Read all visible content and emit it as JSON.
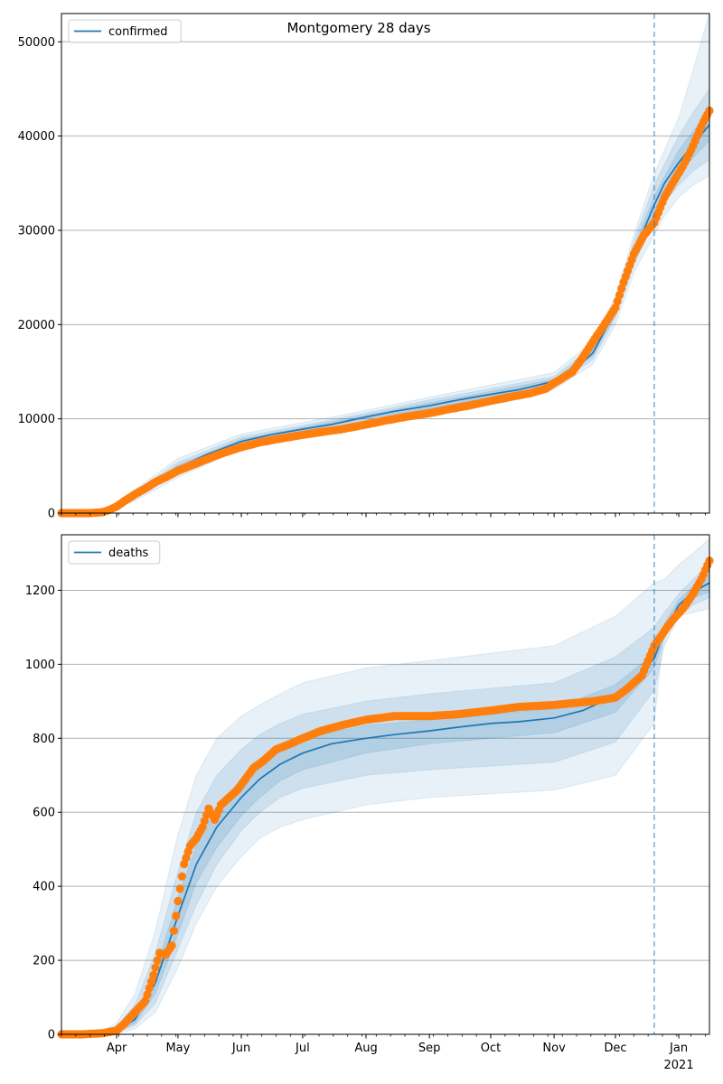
{
  "figure": {
    "title": "Montgomery 28 days"
  },
  "colors": {
    "model": "#1f77b4",
    "observed": "#ff7f0e",
    "band": "#1f77b4",
    "grid": "#b0b0b0",
    "divider": "#1f77b4"
  },
  "x_axis": {
    "month_labels": [
      "Apr",
      "May",
      "Jun",
      "Jul",
      "Aug",
      "Sep",
      "Oct",
      "Nov",
      "Dec",
      "Jan"
    ],
    "year_label": "2021",
    "major_ticks": [
      "2020-04-01",
      "2020-05-01",
      "2020-06-01",
      "2020-07-01",
      "2020-08-01",
      "2020-09-01",
      "2020-10-01",
      "2020-11-01",
      "2020-12-01",
      "2021-01-01"
    ],
    "start": "2020-03-05",
    "end": "2021-01-16",
    "forecast_start": "2020-12-20"
  },
  "chart_data": [
    {
      "type": "line",
      "title": "Montgomery 28 days",
      "legend": "confirmed",
      "legend_position": "top-left",
      "grid": "horizontal",
      "ylim": [
        0,
        53000
      ],
      "yticks": [
        0,
        10000,
        20000,
        30000,
        40000,
        50000
      ],
      "ytick_labels": [
        "0",
        "10000",
        "20000",
        "30000",
        "40000",
        "50000"
      ],
      "series": [
        {
          "name": "confirmed",
          "role": "model",
          "x": [
            "2020-03-05",
            "2020-03-20",
            "2020-03-27",
            "2020-04-01",
            "2020-04-10",
            "2020-04-20",
            "2020-05-01",
            "2020-05-15",
            "2020-06-01",
            "2020-06-15",
            "2020-07-01",
            "2020-07-15",
            "2020-08-01",
            "2020-08-15",
            "2020-09-01",
            "2020-09-15",
            "2020-10-01",
            "2020-10-15",
            "2020-11-01",
            "2020-11-10",
            "2020-11-20",
            "2020-12-01",
            "2020-12-10",
            "2020-12-20",
            "2020-12-25",
            "2021-01-01",
            "2021-01-08",
            "2021-01-16"
          ],
          "y": [
            0,
            0,
            300,
            800,
            1900,
            3200,
            4800,
            6200,
            7600,
            8300,
            8900,
            9400,
            10200,
            10800,
            11400,
            12000,
            12600,
            13100,
            14000,
            15000,
            17000,
            21500,
            27500,
            32700,
            35000,
            37200,
            39100,
            41200
          ]
        },
        {
          "name": "confirmed observed",
          "role": "observed",
          "x": [
            "2020-03-05",
            "2020-03-12",
            "2020-03-19",
            "2020-03-25",
            "2020-03-28",
            "2020-04-01",
            "2020-04-05",
            "2020-04-10",
            "2020-04-15",
            "2020-04-20",
            "2020-04-25",
            "2020-05-01",
            "2020-05-08",
            "2020-05-15",
            "2020-05-22",
            "2020-06-01",
            "2020-06-10",
            "2020-06-20",
            "2020-07-01",
            "2020-07-10",
            "2020-07-20",
            "2020-08-01",
            "2020-08-10",
            "2020-08-20",
            "2020-09-01",
            "2020-09-10",
            "2020-09-20",
            "2020-10-01",
            "2020-10-10",
            "2020-10-20",
            "2020-10-28",
            "2020-11-01",
            "2020-11-05",
            "2020-11-10",
            "2020-11-15",
            "2020-11-20",
            "2020-11-25",
            "2020-12-01",
            "2020-12-05",
            "2020-12-10",
            "2020-12-15",
            "2020-12-20",
            "2020-12-25",
            "2020-12-29",
            "2021-01-03",
            "2021-01-07",
            "2021-01-10",
            "2021-01-13",
            "2021-01-16"
          ],
          "y": [
            0,
            0,
            0,
            100,
            300,
            700,
            1300,
            2000,
            2600,
            3300,
            3800,
            4500,
            5100,
            5700,
            6300,
            7000,
            7500,
            7900,
            8300,
            8600,
            8900,
            9400,
            9800,
            10200,
            10600,
            11000,
            11400,
            11900,
            12300,
            12700,
            13200,
            13800,
            14300,
            15000,
            16500,
            18200,
            19800,
            21800,
            24500,
            27500,
            29500,
            30800,
            33500,
            35000,
            36800,
            38500,
            40000,
            41500,
            42700
          ]
        }
      ],
      "bands": [
        {
          "label": "outer",
          "x": [
            "2020-03-05",
            "2020-03-27",
            "2020-04-10",
            "2020-05-01",
            "2020-06-01",
            "2020-07-01",
            "2020-08-01",
            "2020-09-01",
            "2020-10-01",
            "2020-11-01",
            "2020-11-20",
            "2020-12-01",
            "2020-12-10",
            "2020-12-20",
            "2020-12-25",
            "2021-01-01",
            "2021-01-08",
            "2021-01-16"
          ],
          "upper": [
            0,
            500,
            2500,
            5800,
            8400,
            9600,
            10900,
            12300,
            13600,
            14900,
            18200,
            23000,
            29500,
            36000,
            38500,
            42000,
            47000,
            53000
          ],
          "lower": [
            0,
            100,
            1300,
            3800,
            6800,
            8200,
            9400,
            10700,
            11800,
            13100,
            15800,
            20000,
            25500,
            29500,
            31500,
            33500,
            34800,
            35800
          ]
        },
        {
          "label": "middle",
          "x": [
            "2020-03-05",
            "2020-03-27",
            "2020-04-10",
            "2020-05-01",
            "2020-06-01",
            "2020-07-01",
            "2020-08-01",
            "2020-09-01",
            "2020-10-01",
            "2020-11-01",
            "2020-11-20",
            "2020-12-01",
            "2020-12-10",
            "2020-12-20",
            "2020-12-25",
            "2021-01-01",
            "2021-01-08",
            "2021-01-16"
          ],
          "upper": [
            0,
            420,
            2250,
            5400,
            8100,
            9300,
            10600,
            12000,
            13200,
            14500,
            17700,
            22400,
            28800,
            34800,
            37000,
            40000,
            42500,
            45000
          ],
          "lower": [
            0,
            180,
            1550,
            4200,
            7100,
            8500,
            9800,
            11000,
            12100,
            13500,
            16300,
            20700,
            26300,
            31000,
            33000,
            34800,
            36300,
            37500
          ]
        },
        {
          "label": "inner",
          "x": [
            "2020-03-05",
            "2020-03-27",
            "2020-04-10",
            "2020-05-01",
            "2020-06-01",
            "2020-07-01",
            "2020-08-01",
            "2020-09-01",
            "2020-10-01",
            "2020-11-01",
            "2020-11-20",
            "2020-12-01",
            "2020-12-10",
            "2020-12-20",
            "2020-12-25",
            "2021-01-01",
            "2021-01-08",
            "2021-01-16"
          ],
          "upper": [
            0,
            360,
            2050,
            5100,
            7850,
            9100,
            10400,
            11700,
            12900,
            14200,
            17300,
            21900,
            28100,
            33600,
            35700,
            38500,
            40500,
            42800
          ],
          "lower": [
            0,
            240,
            1750,
            4500,
            7350,
            8700,
            10000,
            11100,
            12300,
            13800,
            16700,
            21100,
            26900,
            31800,
            34200,
            36000,
            37700,
            39500
          ]
        }
      ]
    },
    {
      "type": "line",
      "legend": "deaths",
      "legend_position": "top-left",
      "grid": "horizontal",
      "ylim": [
        0,
        1350
      ],
      "yticks": [
        0,
        200,
        400,
        600,
        800,
        1000,
        1200
      ],
      "ytick_labels": [
        "0",
        "200",
        "400",
        "600",
        "800",
        "1000",
        "1200"
      ],
      "series": [
        {
          "name": "deaths",
          "role": "model",
          "x": [
            "2020-03-05",
            "2020-03-25",
            "2020-04-01",
            "2020-04-10",
            "2020-04-20",
            "2020-05-01",
            "2020-05-10",
            "2020-05-20",
            "2020-06-01",
            "2020-06-10",
            "2020-06-20",
            "2020-07-01",
            "2020-07-15",
            "2020-08-01",
            "2020-08-15",
            "2020-09-01",
            "2020-09-15",
            "2020-10-01",
            "2020-10-15",
            "2020-11-01",
            "2020-11-15",
            "2020-12-01",
            "2020-12-10",
            "2020-12-20",
            "2020-12-25",
            "2021-01-01",
            "2021-01-08",
            "2021-01-16"
          ],
          "y": [
            0,
            2,
            10,
            40,
            140,
            320,
            460,
            560,
            640,
            690,
            730,
            760,
            785,
            800,
            810,
            820,
            830,
            840,
            845,
            855,
            875,
            915,
            960,
            1015,
            1090,
            1160,
            1195,
            1220
          ]
        },
        {
          "name": "deaths observed",
          "role": "observed",
          "x": [
            "2020-03-05",
            "2020-03-15",
            "2020-03-25",
            "2020-04-01",
            "2020-04-05",
            "2020-04-10",
            "2020-04-15",
            "2020-04-19",
            "2020-04-22",
            "2020-04-25",
            "2020-04-28",
            "2020-05-01",
            "2020-05-04",
            "2020-05-07",
            "2020-05-10",
            "2020-05-13",
            "2020-05-16",
            "2020-05-19",
            "2020-05-22",
            "2020-05-26",
            "2020-05-30",
            "2020-06-03",
            "2020-06-07",
            "2020-06-12",
            "2020-06-18",
            "2020-06-25",
            "2020-07-01",
            "2020-07-10",
            "2020-07-20",
            "2020-08-01",
            "2020-08-15",
            "2020-09-01",
            "2020-09-15",
            "2020-10-01",
            "2020-10-15",
            "2020-11-01",
            "2020-11-10",
            "2020-11-20",
            "2020-12-01",
            "2020-12-07",
            "2020-12-14",
            "2020-12-20",
            "2020-12-25",
            "2020-12-29",
            "2021-01-03",
            "2021-01-08",
            "2021-01-12",
            "2021-01-16"
          ],
          "y": [
            0,
            0,
            3,
            10,
            30,
            60,
            90,
            160,
            220,
            215,
            240,
            360,
            460,
            510,
            530,
            560,
            610,
            580,
            620,
            640,
            660,
            690,
            720,
            740,
            770,
            785,
            800,
            820,
            835,
            850,
            860,
            860,
            865,
            875,
            885,
            890,
            895,
            900,
            910,
            935,
            970,
            1050,
            1090,
            1120,
            1150,
            1190,
            1230,
            1280
          ]
        }
      ],
      "bands": [
        {
          "label": "outer",
          "x": [
            "2020-03-05",
            "2020-03-25",
            "2020-04-01",
            "2020-04-10",
            "2020-04-20",
            "2020-05-01",
            "2020-05-10",
            "2020-05-20",
            "2020-06-01",
            "2020-06-10",
            "2020-06-20",
            "2020-07-01",
            "2020-08-01",
            "2020-09-01",
            "2020-10-01",
            "2020-11-01",
            "2020-12-01",
            "2020-12-20",
            "2020-12-25",
            "2021-01-01",
            "2021-01-08",
            "2021-01-16"
          ],
          "upper": [
            0,
            10,
            30,
            110,
            280,
            540,
            700,
            800,
            860,
            890,
            920,
            950,
            990,
            1010,
            1030,
            1050,
            1130,
            1220,
            1230,
            1270,
            1300,
            1340
          ],
          "lower": [
            0,
            0,
            2,
            15,
            60,
            180,
            300,
            400,
            480,
            530,
            560,
            580,
            620,
            640,
            650,
            660,
            700,
            840,
            1110,
            1130,
            1140,
            1150
          ]
        },
        {
          "label": "middle",
          "x": [
            "2020-03-05",
            "2020-03-25",
            "2020-04-01",
            "2020-04-10",
            "2020-04-20",
            "2020-05-01",
            "2020-05-10",
            "2020-05-20",
            "2020-06-01",
            "2020-06-10",
            "2020-06-20",
            "2020-07-01",
            "2020-08-01",
            "2020-09-01",
            "2020-10-01",
            "2020-11-01",
            "2020-12-01",
            "2020-12-20",
            "2020-12-25",
            "2021-01-01",
            "2021-01-08",
            "2021-01-16"
          ],
          "upper": [
            0,
            7,
            22,
            80,
            220,
            440,
            600,
            700,
            770,
            810,
            840,
            865,
            900,
            920,
            935,
            950,
            1020,
            1100,
            1140,
            1190,
            1230,
            1270
          ],
          "lower": [
            0,
            1,
            5,
            25,
            85,
            230,
            350,
            460,
            550,
            600,
            640,
            665,
            700,
            715,
            725,
            735,
            790,
            930,
            1050,
            1130,
            1160,
            1180
          ]
        },
        {
          "label": "inner",
          "x": [
            "2020-03-05",
            "2020-03-25",
            "2020-04-01",
            "2020-04-10",
            "2020-04-20",
            "2020-05-01",
            "2020-05-10",
            "2020-05-20",
            "2020-06-01",
            "2020-06-10",
            "2020-06-20",
            "2020-07-01",
            "2020-08-01",
            "2020-09-01",
            "2020-10-01",
            "2020-11-01",
            "2020-12-01",
            "2020-12-20",
            "2020-12-25",
            "2021-01-01",
            "2021-01-08",
            "2021-01-16"
          ],
          "upper": [
            0,
            4,
            15,
            55,
            170,
            370,
            510,
            615,
            690,
            740,
            775,
            800,
            835,
            850,
            865,
            880,
            945,
            1030,
            1110,
            1175,
            1210,
            1245
          ],
          "lower": [
            0,
            1,
            6,
            30,
            110,
            270,
            410,
            505,
            590,
            640,
            685,
            715,
            760,
            785,
            800,
            815,
            870,
            990,
            1070,
            1145,
            1180,
            1195
          ]
        }
      ]
    }
  ]
}
